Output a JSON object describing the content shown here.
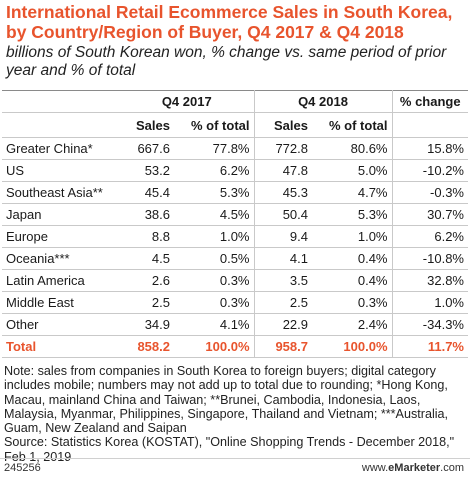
{
  "header": {
    "title": "International Retail Ecommerce Sales in South Korea, by Country/Region of Buyer, Q4 2017 & Q4 2018",
    "subtitle": "billions of South Korean won, % change vs. same period of prior year and % of total"
  },
  "chart_data": {
    "type": "table",
    "column_groups": [
      "Q4 2017",
      "Q4 2018",
      "% change"
    ],
    "columns": [
      "Sales",
      "% of total",
      "Sales",
      "% of total"
    ],
    "rows": [
      {
        "label": "Greater China*",
        "sales_2017": "667.6",
        "share_2017": "77.8%",
        "sales_2018": "772.8",
        "share_2018": "80.6%",
        "change": "15.8%"
      },
      {
        "label": "US",
        "sales_2017": "53.2",
        "share_2017": "6.2%",
        "sales_2018": "47.8",
        "share_2018": "5.0%",
        "change": "-10.2%"
      },
      {
        "label": "Southeast Asia**",
        "sales_2017": "45.4",
        "share_2017": "5.3%",
        "sales_2018": "45.3",
        "share_2018": "4.7%",
        "change": "-0.3%"
      },
      {
        "label": "Japan",
        "sales_2017": "38.6",
        "share_2017": "4.5%",
        "sales_2018": "50.4",
        "share_2018": "5.3%",
        "change": "30.7%"
      },
      {
        "label": "Europe",
        "sales_2017": "8.8",
        "share_2017": "1.0%",
        "sales_2018": "9.4",
        "share_2018": "1.0%",
        "change": "6.2%"
      },
      {
        "label": "Oceania***",
        "sales_2017": "4.5",
        "share_2017": "0.5%",
        "sales_2018": "4.1",
        "share_2018": "0.4%",
        "change": "-10.8%"
      },
      {
        "label": "Latin America",
        "sales_2017": "2.6",
        "share_2017": "0.3%",
        "sales_2018": "3.5",
        "share_2018": "0.4%",
        "change": "32.8%"
      },
      {
        "label": "Middle East",
        "sales_2017": "2.5",
        "share_2017": "0.3%",
        "sales_2018": "2.5",
        "share_2018": "0.3%",
        "change": "1.0%"
      },
      {
        "label": "Other",
        "sales_2017": "34.9",
        "share_2017": "4.1%",
        "sales_2018": "22.9",
        "share_2018": "2.4%",
        "change": "-34.3%"
      }
    ],
    "total": {
      "label": "Total",
      "sales_2017": "858.2",
      "share_2017": "100.0%",
      "sales_2018": "958.7",
      "share_2018": "100.0%",
      "change": "11.7%"
    }
  },
  "note": "Note: sales from companies in South Korea to foreign buyers; digital category includes mobile; numbers may not add up to total due to rounding; *Hong Kong, Macau, mainland China and Taiwan; **Brunei, Cambodia, Indonesia, Laos, Malaysia, Myanmar, Philippines, Singapore, Thailand and Vietnam; ***Australia, Guam, New Zealand and Saipan",
  "source": "Source: Statistics Korea (KOSTAT), \"Online Shopping Trends - December 2018,\" Feb 1, 2019",
  "footer": {
    "chart_id": "245256",
    "site_prefix": "www.",
    "site_brand": "eMarketer",
    "site_suffix": ".com"
  },
  "colors": {
    "accent": "#e8542d"
  }
}
